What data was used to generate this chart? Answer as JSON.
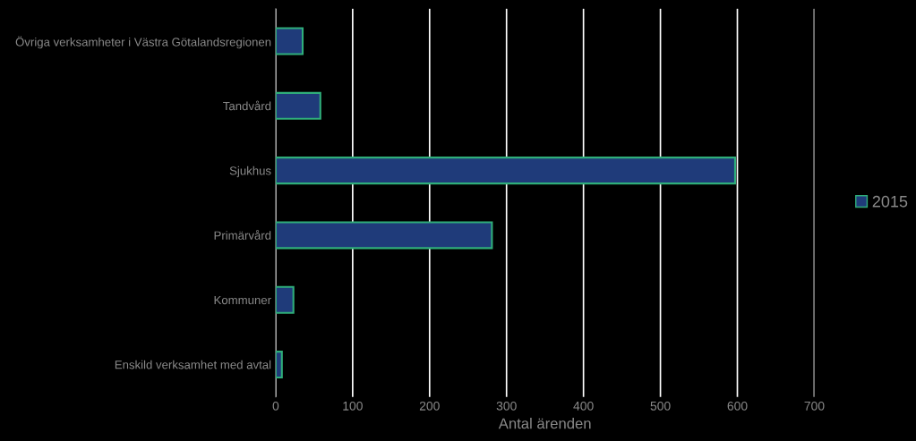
{
  "chart_data": {
    "type": "bar",
    "orientation": "horizontal",
    "xlabel": "Antal ärenden",
    "categories": [
      "Övriga verksamheter i Västra Götalandsregionen",
      "Tandvård",
      "Sjukhus",
      "Primärvård",
      "Kommuner",
      "Enskild verksamhet med avtal"
    ],
    "series": [
      {
        "name": "2015",
        "color": "#1f3b7a",
        "values": [
          35,
          58,
          597,
          281,
          23,
          8
        ]
      }
    ],
    "xlim": [
      0,
      700
    ],
    "xticks": [
      0,
      100,
      200,
      300,
      400,
      500,
      600,
      700
    ],
    "grid": "x",
    "legend": "right"
  }
}
